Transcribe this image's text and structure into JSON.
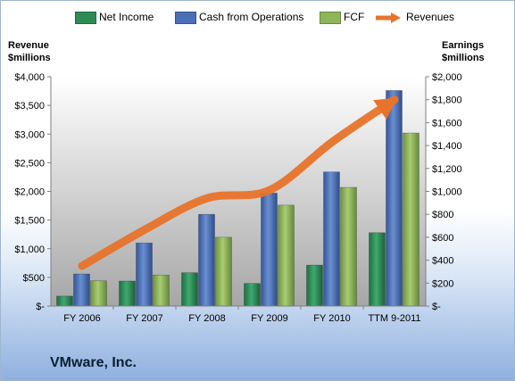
{
  "chart_data": {
    "type": "bar",
    "categories": [
      "FY 2006",
      "FY 2007",
      "FY 2008",
      "FY 2009",
      "FY 2010",
      "TTM 9-2011"
    ],
    "series": [
      {
        "name": "Net Income",
        "axis": "right",
        "color": "#2e8b57",
        "values": [
          86,
          218,
          290,
          197,
          357,
          640
        ]
      },
      {
        "name": "Cash from Operations",
        "axis": "right",
        "color": "#4a6fb5",
        "values": [
          280,
          550,
          800,
          985,
          1170,
          1880
        ]
      },
      {
        "name": "FCF",
        "axis": "right",
        "color": "#8fb55a",
        "values": [
          220,
          270,
          600,
          880,
          1035,
          1510
        ]
      },
      {
        "name": "Revenues",
        "axis": "left",
        "type": "line",
        "color": "#e8732a",
        "values": [
          700,
          1330,
          1880,
          2020,
          2860,
          3600
        ]
      }
    ],
    "left_axis": {
      "title": [
        "Revenue",
        "$millions"
      ],
      "range": [
        0,
        4000
      ],
      "ticks": [
        "$-",
        "$500",
        "$1,000",
        "$1,500",
        "$2,000",
        "$2,500",
        "$3,000",
        "$3,500",
        "$4,000"
      ]
    },
    "right_axis": {
      "title": [
        "Earnings",
        "$millions"
      ],
      "range": [
        0,
        2000
      ],
      "ticks": [
        "$-",
        "$200",
        "$400",
        "$600",
        "$800",
        "$1,000",
        "$1,200",
        "$1,400",
        "$1,600",
        "$1,800",
        "$2,000"
      ]
    },
    "legend_position": "top",
    "grid": false,
    "plot_background": "gradient gray"
  },
  "company_name": "VMware, Inc."
}
